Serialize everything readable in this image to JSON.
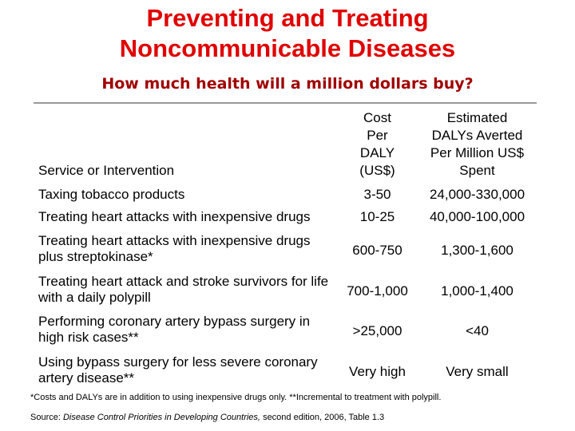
{
  "header": {
    "title": "Preventing and Treating Noncommunicable Diseases",
    "subtitle": "How much health will a million dollars buy?"
  },
  "table": {
    "columns": [
      [
        "Service or Intervention"
      ],
      [
        "Cost",
        "Per",
        "DALY",
        "(US$)"
      ],
      [
        "Estimated",
        "DALYs Averted",
        "Per Million US$",
        "Spent"
      ]
    ],
    "rows": [
      [
        "Taxing tobacco products",
        "3-50",
        "24,000-330,000"
      ],
      [
        "Treating heart attacks with inexpensive drugs",
        "10-25",
        "40,000-100,000"
      ],
      [
        "Treating heart attacks with inexpensive drugs plus streptokinase*",
        "600-750",
        "1,300-1,600"
      ],
      [
        "Treating heart attack and stroke survivors for life with a daily polypill",
        "700-1,000",
        "1,000-1,400"
      ],
      [
        "Performing coronary artery bypass surgery in high risk cases**",
        ">25,000",
        "<40"
      ],
      [
        "Using bypass surgery for less severe coronary artery disease**",
        "Very high",
        "Very small"
      ]
    ]
  },
  "footnote": "*Costs and DALYs are in addition to using inexpensive drugs only. **Incremental to treatment with polypill.",
  "source": {
    "prefix": "Source:",
    "title": "Disease Control Priorities in Developing Countries,",
    "rest": "second edition, 2006, Table 1.3"
  }
}
